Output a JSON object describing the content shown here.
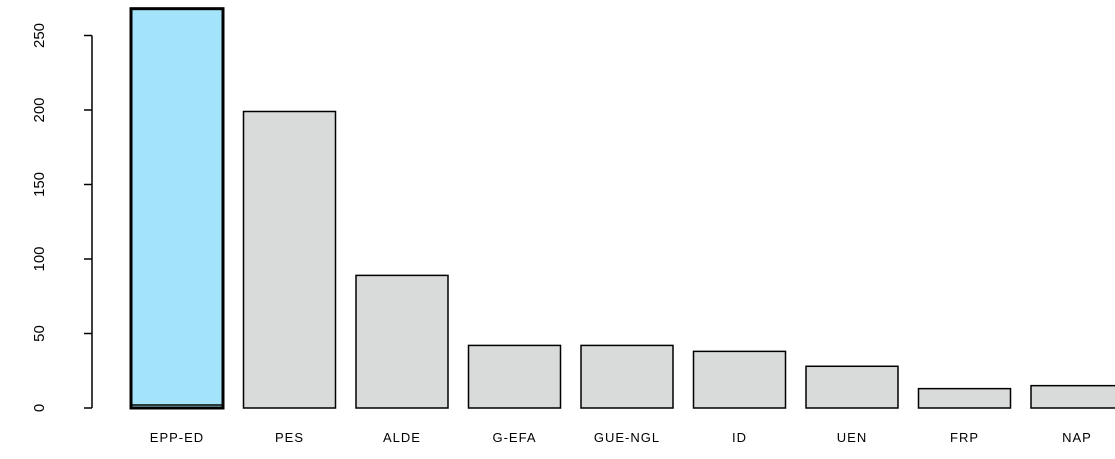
{
  "chart_data": {
    "type": "bar",
    "title": "",
    "xlabel": "",
    "ylabel": "",
    "categories": [
      "EPP-ED",
      "PES",
      "ALDE",
      "G-EFA",
      "GUE-NGL",
      "ID",
      "UEN",
      "FRP",
      "NAP"
    ],
    "values": [
      268,
      199,
      89,
      42,
      42,
      38,
      28,
      13,
      15
    ],
    "ylim": [
      0,
      270
    ],
    "yticks": [
      0,
      50,
      100,
      150,
      200,
      250
    ],
    "ytick_labels": [
      "0",
      "50",
      "100",
      "150",
      "200",
      "250"
    ],
    "grid": false,
    "legend": "none",
    "highlight_index": 0,
    "colors": {
      "bar_fill": "#d9dada",
      "highlight_fill": "#a3e4fb",
      "bar_stroke": "#000000",
      "axis": "#000000"
    }
  }
}
